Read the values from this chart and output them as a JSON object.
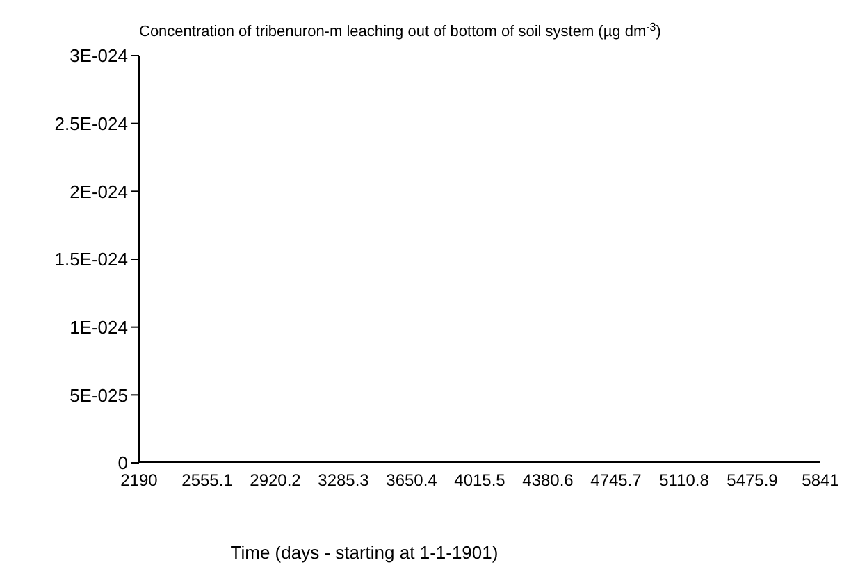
{
  "chart_data": {
    "type": "line",
    "title": "Concentration of tribenuron-m leaching out of bottom of soil system (µg dm$^{-3}$)",
    "xlabel": "Time (days - starting at 1-1-1901)",
    "series": [
      {
        "color": "#000000",
        "x": [
          2190,
          5841
        ],
        "values": [
          0,
          0
        ]
      }
    ],
    "xlim": [
      2190,
      5841
    ],
    "xticks": [
      2190,
      2555.1,
      2920.2,
      3285.3,
      3650.4,
      4015.5,
      4380.6,
      4745.7,
      5110.8,
      5475.9,
      5841
    ],
    "ylim": [
      0,
      3e-24
    ],
    "yticks": [
      0,
      {
        "value": 5e-25,
        "label": "5E-025"
      },
      {
        "value": 1e-24,
        "label": "1E-024"
      },
      {
        "value": 1.5e-24,
        "label": "1.5E-024"
      },
      {
        "value": 2e-24,
        "label": "2E-024"
      },
      {
        "value": 2.5e-24,
        "label": "2.5E-024"
      },
      {
        "value": 3e-24,
        "label": "3E-024"
      }
    ],
    "grid": false,
    "legend": false,
    "marker": "none",
    "line_style": "solid"
  }
}
